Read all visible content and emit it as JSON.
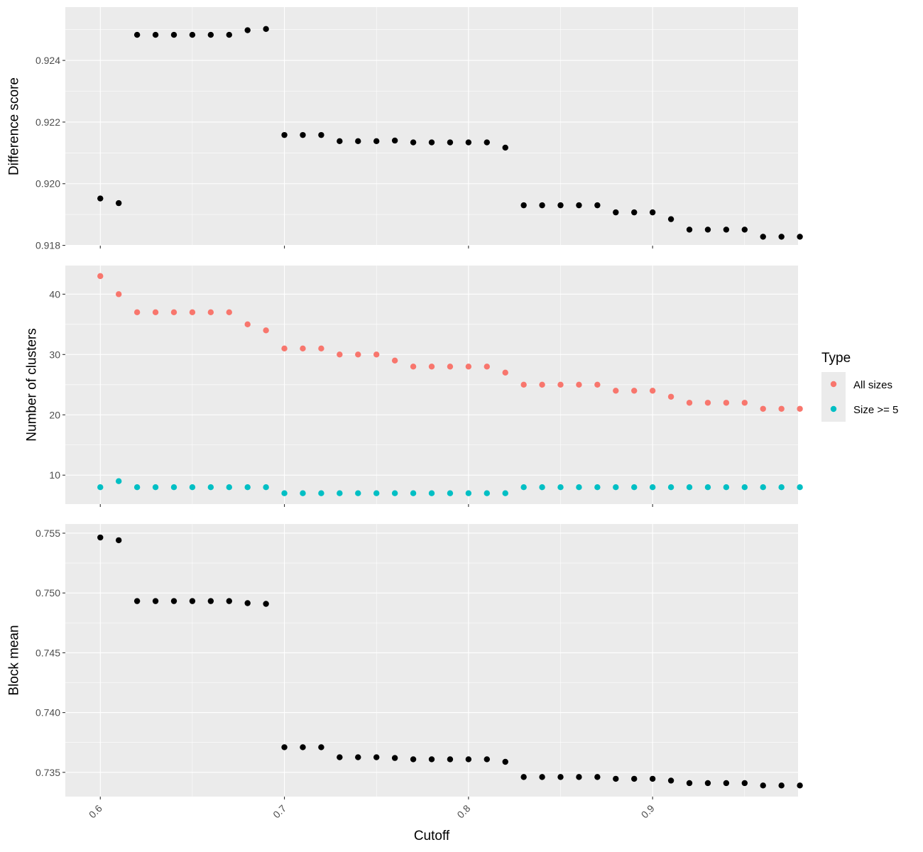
{
  "chart_data": [
    {
      "type": "scatter",
      "ylabel": "Difference score",
      "xlim": [
        0.581,
        0.979
      ],
      "ylim": [
        0.91799,
        0.92573
      ],
      "yticks": [
        0.918,
        0.92,
        0.922,
        0.924
      ],
      "ytick_labels": [
        "0.918",
        "0.920",
        "0.922",
        "0.924"
      ],
      "series": [
        {
          "color": "#000000",
          "x": [
            0.6,
            0.61,
            0.62,
            0.63,
            0.64,
            0.65,
            0.66,
            0.67,
            0.68,
            0.69,
            0.7,
            0.71,
            0.72,
            0.73,
            0.74,
            0.75,
            0.76,
            0.77,
            0.78,
            0.79,
            0.8,
            0.81,
            0.82,
            0.83,
            0.84,
            0.85,
            0.86,
            0.87,
            0.88,
            0.89,
            0.9,
            0.91,
            0.92,
            0.93,
            0.94,
            0.95,
            0.96,
            0.97,
            0.98
          ],
          "y": [
            0.91952,
            0.91937,
            0.92483,
            0.92483,
            0.92483,
            0.92483,
            0.92483,
            0.92483,
            0.92498,
            0.92502,
            0.92158,
            0.92158,
            0.92158,
            0.92138,
            0.92138,
            0.92138,
            0.9214,
            0.92134,
            0.92134,
            0.92134,
            0.92134,
            0.92134,
            0.92117,
            0.9193,
            0.9193,
            0.9193,
            0.9193,
            0.9193,
            0.91907,
            0.91907,
            0.91907,
            0.91885,
            0.91851,
            0.91851,
            0.91851,
            0.91851,
            0.91828,
            0.91828,
            0.91828
          ]
        }
      ]
    },
    {
      "type": "scatter",
      "ylabel": "Number of clusters",
      "xlim": [
        0.581,
        0.979
      ],
      "ylim": [
        5.2,
        44.75
      ],
      "yticks": [
        10,
        20,
        30,
        40
      ],
      "ytick_labels": [
        "10",
        "20",
        "30",
        "40"
      ],
      "legend": {
        "title": "Type",
        "placement": "right"
      },
      "series": [
        {
          "name": "All sizes",
          "color": "#F8766D",
          "x": [
            0.6,
            0.61,
            0.62,
            0.63,
            0.64,
            0.65,
            0.66,
            0.67,
            0.68,
            0.69,
            0.7,
            0.71,
            0.72,
            0.73,
            0.74,
            0.75,
            0.76,
            0.77,
            0.78,
            0.79,
            0.8,
            0.81,
            0.82,
            0.83,
            0.84,
            0.85,
            0.86,
            0.87,
            0.88,
            0.89,
            0.9,
            0.91,
            0.92,
            0.93,
            0.94,
            0.95,
            0.96,
            0.97,
            0.98
          ],
          "y": [
            43,
            40,
            37,
            37,
            37,
            37,
            37,
            37,
            35,
            34,
            31,
            31,
            31,
            30,
            30,
            30,
            29,
            28,
            28,
            28,
            28,
            28,
            27,
            25,
            25,
            25,
            25,
            25,
            24,
            24,
            24,
            23,
            22,
            22,
            22,
            22,
            21,
            21,
            21
          ]
        },
        {
          "name": "Size >= 5",
          "color": "#00BFC4",
          "x": [
            0.6,
            0.61,
            0.62,
            0.63,
            0.64,
            0.65,
            0.66,
            0.67,
            0.68,
            0.69,
            0.7,
            0.71,
            0.72,
            0.73,
            0.74,
            0.75,
            0.76,
            0.77,
            0.78,
            0.79,
            0.8,
            0.81,
            0.82,
            0.83,
            0.84,
            0.85,
            0.86,
            0.87,
            0.88,
            0.89,
            0.9,
            0.91,
            0.92,
            0.93,
            0.94,
            0.95,
            0.96,
            0.97,
            0.98
          ],
          "y": [
            8,
            9,
            8,
            8,
            8,
            8,
            8,
            8,
            8,
            8,
            7,
            7,
            7,
            7,
            7,
            7,
            7,
            7,
            7,
            7,
            7,
            7,
            7,
            8,
            8,
            8,
            8,
            8,
            8,
            8,
            8,
            8,
            8,
            8,
            8,
            8,
            8,
            8,
            8
          ]
        }
      ]
    },
    {
      "type": "scatter",
      "ylabel": "Block mean",
      "xlabel": "Cutoff",
      "xlim": [
        0.581,
        0.979
      ],
      "ylim": [
        0.73297,
        0.75577
      ],
      "yticks": [
        0.735,
        0.74,
        0.745,
        0.75,
        0.755
      ],
      "ytick_labels": [
        "0.735",
        "0.740",
        "0.745",
        "0.750",
        "0.755"
      ],
      "xticks": [
        0.6,
        0.7,
        0.8,
        0.9
      ],
      "xtick_labels": [
        "0.6",
        "0.7",
        "0.8",
        "0.9"
      ],
      "series": [
        {
          "color": "#000000",
          "x": [
            0.6,
            0.61,
            0.62,
            0.63,
            0.64,
            0.65,
            0.66,
            0.67,
            0.68,
            0.69,
            0.7,
            0.71,
            0.72,
            0.73,
            0.74,
            0.75,
            0.76,
            0.77,
            0.78,
            0.79,
            0.8,
            0.81,
            0.82,
            0.83,
            0.84,
            0.85,
            0.86,
            0.87,
            0.88,
            0.89,
            0.9,
            0.91,
            0.92,
            0.93,
            0.94,
            0.95,
            0.96,
            0.97,
            0.98
          ],
          "y": [
            0.75464,
            0.75441,
            0.74932,
            0.74932,
            0.74932,
            0.74932,
            0.74932,
            0.74932,
            0.74915,
            0.74909,
            0.7371,
            0.7371,
            0.7371,
            0.73626,
            0.73626,
            0.73626,
            0.7362,
            0.73609,
            0.73609,
            0.73609,
            0.73609,
            0.73609,
            0.73588,
            0.73461,
            0.73461,
            0.73461,
            0.73461,
            0.73461,
            0.73446,
            0.73446,
            0.73446,
            0.73431,
            0.7341,
            0.7341,
            0.7341,
            0.7341,
            0.7339,
            0.7339,
            0.7339
          ]
        }
      ]
    }
  ]
}
